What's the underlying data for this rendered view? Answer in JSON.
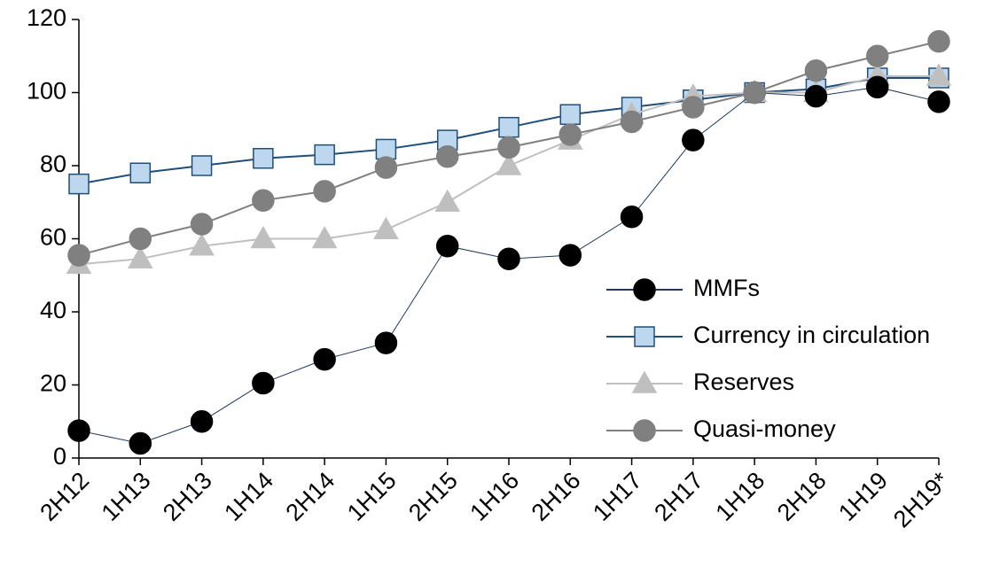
{
  "chart_data": {
    "type": "line",
    "categories": [
      "2H12",
      "1H13",
      "2H13",
      "1H14",
      "2H14",
      "1H15",
      "2H15",
      "1H16",
      "2H16",
      "1H17",
      "2H17",
      "1H18",
      "2H18",
      "1H19",
      "2H19*"
    ],
    "series": [
      {
        "name": "Currency in circulation",
        "color": "#1f4e79",
        "marker": "square",
        "marker_fill": "#bdd7ee",
        "values": [
          75,
          78,
          80,
          82,
          83,
          84.5,
          87,
          90.5,
          94,
          96,
          98,
          100,
          101,
          104,
          104
        ]
      },
      {
        "name": "Reserves",
        "color": "#bfbfbf",
        "marker": "triangle",
        "marker_fill": "#bfbfbf",
        "values": [
          53,
          54.5,
          58,
          60,
          60,
          62.5,
          70,
          80,
          87,
          94,
          99,
          100,
          100,
          104.5,
          104.5
        ]
      },
      {
        "name": "MMFs",
        "color": "#1f3864",
        "marker": "circle",
        "marker_fill": "#000000",
        "values": [
          7.5,
          4,
          10,
          20.5,
          27,
          31.5,
          58,
          54.5,
          55.5,
          66,
          87,
          100,
          99,
          101.5,
          97.5
        ]
      },
      {
        "name": "Quasi-money",
        "color": "#808080",
        "marker": "circle",
        "marker_fill": "#808080",
        "values": [
          55.5,
          60,
          64,
          70.5,
          73,
          79.5,
          82.5,
          85,
          88.5,
          92,
          96,
          100,
          106,
          110,
          114
        ]
      }
    ],
    "legend_order": [
      2,
      0,
      1,
      3
    ],
    "ylim": [
      0,
      120
    ],
    "yticks": [
      0,
      20,
      40,
      60,
      80,
      100,
      120
    ]
  }
}
